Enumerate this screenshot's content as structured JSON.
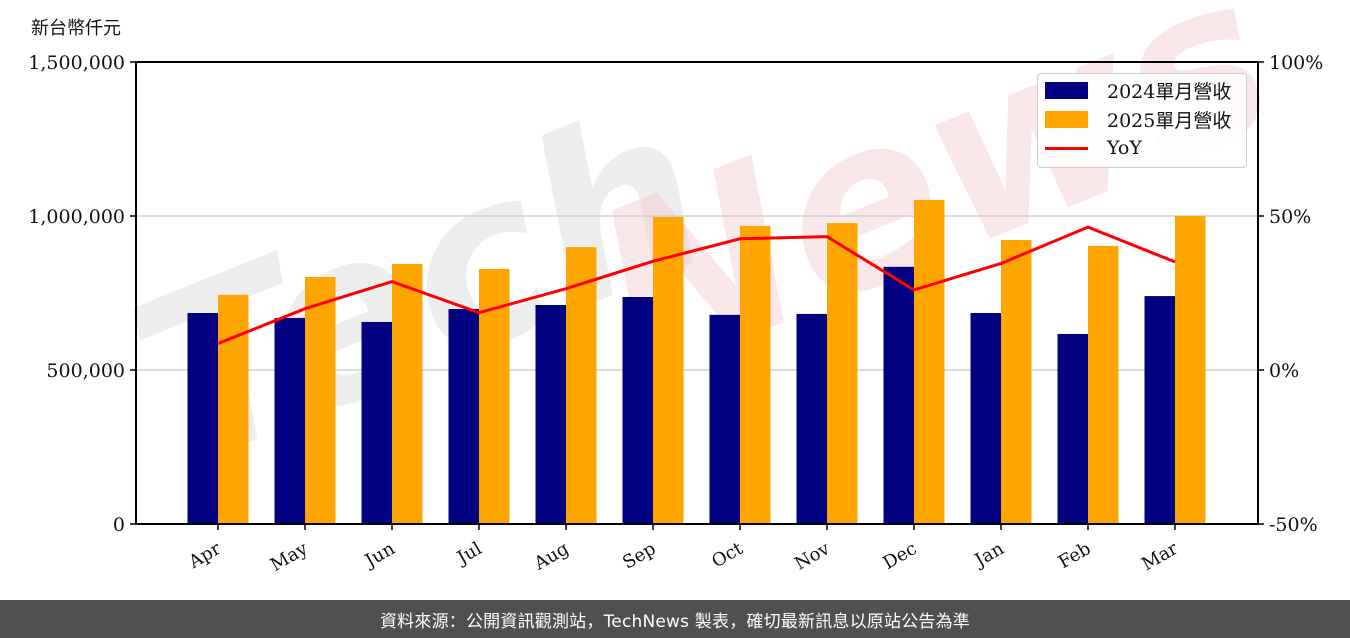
{
  "unit_label": "新台幣仟元",
  "footer": {
    "text": "資料來源：公開資訊觀測站，TechNews 製表，確切最新訊息以原站公告為準"
  },
  "watermark": {
    "text": "TechNews"
  },
  "colors": {
    "series_2024": "#000080",
    "series_2025": "#FFA500",
    "yoy": "#FF0000",
    "grid": "#d0d0d0",
    "footer_bg": "#505050"
  },
  "legend": {
    "items": [
      {
        "label": "2024單月營收",
        "type": "bar",
        "color": "#000080"
      },
      {
        "label": "2025單月營收",
        "type": "bar",
        "color": "#FFA500"
      },
      {
        "label": "YoY",
        "type": "line",
        "color": "#FF0000"
      }
    ]
  },
  "chart_data": {
    "type": "bar",
    "title": "",
    "xlabel": "",
    "ylabel": "新台幣仟元",
    "y2label": "",
    "categories": [
      "Apr",
      "May",
      "Jun",
      "Jul",
      "Aug",
      "Sep",
      "Oct",
      "Nov",
      "Dec",
      "Jan",
      "Feb",
      "Mar"
    ],
    "series": [
      {
        "name": "2024單月營收",
        "type": "bar",
        "axis": "left",
        "values": [
          685000,
          669000,
          656000,
          698000,
          711000,
          737000,
          679000,
          682000,
          835000,
          685000,
          617000,
          740000
        ]
      },
      {
        "name": "2025單月營收",
        "type": "bar",
        "axis": "left",
        "values": [
          744000,
          802000,
          844000,
          828000,
          899000,
          997000,
          968000,
          977000,
          1052000,
          922000,
          903000,
          1000000
        ]
      },
      {
        "name": "YoY",
        "type": "line",
        "axis": "right",
        "values": [
          8.6,
          19.9,
          28.7,
          18.6,
          26.4,
          35.3,
          42.6,
          43.3,
          26.0,
          34.6,
          46.4,
          35.1
        ]
      }
    ],
    "ylim": [
      0,
      1500000
    ],
    "y_ticks": [
      0,
      500000,
      1000000,
      1500000
    ],
    "y_tick_labels": [
      "0",
      "500,000",
      "1,000,000",
      "1,500,000"
    ],
    "y2lim": [
      -50,
      100
    ],
    "y2_ticks": [
      -50,
      0,
      50,
      100
    ],
    "y2_tick_labels": [
      "-50%",
      "0%",
      "50%",
      "100%"
    ],
    "grid": true,
    "legend_position": "upper right"
  }
}
